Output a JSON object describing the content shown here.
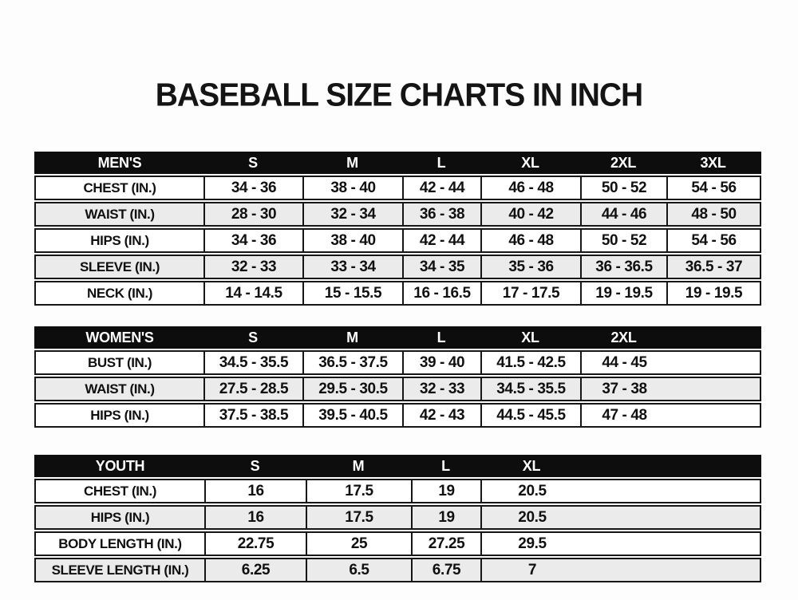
{
  "title": "BASEBALL SIZE CHARTS IN INCH",
  "colors": {
    "header_bg": "#0d0d0d",
    "header_text": "#ffffff",
    "row_alt_bg": "#ebebeb",
    "border": "#161616"
  },
  "tables": [
    {
      "name": "MEN'S",
      "columns": [
        "S",
        "M",
        "L",
        "XL",
        "2XL",
        "3XL"
      ],
      "rows": [
        {
          "label": "CHEST (IN.)",
          "values": [
            "34 - 36",
            "38 - 40",
            "42 - 44",
            "46 - 48",
            "50 - 52",
            "54 - 56"
          ]
        },
        {
          "label": "WAIST (IN.)",
          "values": [
            "28 - 30",
            "32 - 34",
            "36 - 38",
            "40 - 42",
            "44 - 46",
            "48 - 50"
          ]
        },
        {
          "label": "HIPS (IN.)",
          "values": [
            "34 - 36",
            "38 - 40",
            "42 - 44",
            "46 - 48",
            "50 - 52",
            "54 - 56"
          ]
        },
        {
          "label": "SLEEVE (IN.)",
          "values": [
            "32 - 33",
            "33 - 34",
            "34 - 35",
            "35 - 36",
            "36 - 36.5",
            "36.5 - 37"
          ]
        },
        {
          "label": "NECK (IN.)",
          "values": [
            "14 - 14.5",
            "15 - 15.5",
            "16 - 16.5",
            "17 - 17.5",
            "19 - 19.5",
            "19 - 19.5"
          ]
        }
      ]
    },
    {
      "name": "WOMEN'S",
      "columns": [
        "S",
        "M",
        "L",
        "XL",
        "2XL"
      ],
      "rows": [
        {
          "label": "BUST (IN.)",
          "values": [
            "34.5 - 35.5",
            "36.5 - 37.5",
            "39 - 40",
            "41.5 - 42.5",
            "44 - 45"
          ]
        },
        {
          "label": "WAIST (IN.)",
          "values": [
            "27.5 - 28.5",
            "29.5 - 30.5",
            "32 - 33",
            "34.5 - 35.5",
            "37 - 38"
          ]
        },
        {
          "label": "HIPS (IN.)",
          "values": [
            "37.5 - 38.5",
            "39.5 - 40.5",
            "42 - 43",
            "44.5 - 45.5",
            "47 - 48"
          ]
        }
      ]
    },
    {
      "name": "YOUTH",
      "columns": [
        "S",
        "M",
        "L",
        "XL"
      ],
      "rows": [
        {
          "label": "CHEST (IN.)",
          "values": [
            "16",
            "17.5",
            "19",
            "20.5"
          ]
        },
        {
          "label": "HIPS (IN.)",
          "values": [
            "16",
            "17.5",
            "19",
            "20.5"
          ]
        },
        {
          "label": "BODY LENGTH (IN.)",
          "values": [
            "22.75",
            "25",
            "27.25",
            "29.5"
          ]
        },
        {
          "label": "SLEEVE LENGTH (IN.)",
          "values": [
            "6.25",
            "6.5",
            "6.75",
            "7"
          ]
        }
      ]
    }
  ],
  "chart_data": [
    {
      "type": "table",
      "title": "MEN'S",
      "columns": [
        "S",
        "M",
        "L",
        "XL",
        "2XL",
        "3XL"
      ],
      "row_labels": [
        "CHEST (IN.)",
        "WAIST (IN.)",
        "HIPS (IN.)",
        "SLEEVE (IN.)",
        "NECK (IN.)"
      ],
      "cells": [
        [
          "34 - 36",
          "38 - 40",
          "42 - 44",
          "46 - 48",
          "50 - 52",
          "54 - 56"
        ],
        [
          "28 - 30",
          "32 - 34",
          "36 - 38",
          "40 - 42",
          "44 - 46",
          "48 - 50"
        ],
        [
          "34 - 36",
          "38 - 40",
          "42 - 44",
          "46 - 48",
          "50 - 52",
          "54 - 56"
        ],
        [
          "32 - 33",
          "33 - 34",
          "34 - 35",
          "35 - 36",
          "36 - 36.5",
          "36.5 - 37"
        ],
        [
          "14 - 14.5",
          "15 - 15.5",
          "16 - 16.5",
          "17 - 17.5",
          "19 - 19.5",
          "19 - 19.5"
        ]
      ]
    },
    {
      "type": "table",
      "title": "WOMEN'S",
      "columns": [
        "S",
        "M",
        "L",
        "XL",
        "2XL"
      ],
      "row_labels": [
        "BUST (IN.)",
        "WAIST (IN.)",
        "HIPS (IN.)"
      ],
      "cells": [
        [
          "34.5 - 35.5",
          "36.5 - 37.5",
          "39 - 40",
          "41.5 - 42.5",
          "44 - 45"
        ],
        [
          "27.5 - 28.5",
          "29.5 - 30.5",
          "32 - 33",
          "34.5 - 35.5",
          "37 - 38"
        ],
        [
          "37.5 - 38.5",
          "39.5 - 40.5",
          "42 - 43",
          "44.5 - 45.5",
          "47 - 48"
        ]
      ]
    },
    {
      "type": "table",
      "title": "YOUTH",
      "columns": [
        "S",
        "M",
        "L",
        "XL"
      ],
      "row_labels": [
        "CHEST (IN.)",
        "HIPS (IN.)",
        "BODY LENGTH (IN.)",
        "SLEEVE LENGTH (IN.)"
      ],
      "cells": [
        [
          "16",
          "17.5",
          "19",
          "20.5"
        ],
        [
          "16",
          "17.5",
          "19",
          "20.5"
        ],
        [
          "22.75",
          "25",
          "27.25",
          "29.5"
        ],
        [
          "6.25",
          "6.5",
          "6.75",
          "7"
        ]
      ]
    }
  ]
}
